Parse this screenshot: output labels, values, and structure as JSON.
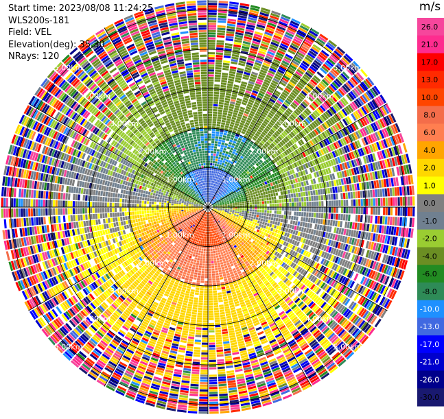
{
  "info": {
    "start_time": "Start time: 2023/08/08 11:24:25",
    "instrument": "WLS200s-181",
    "field": "Field: VEL",
    "elevation": "Elevation(deg): 35.30",
    "nrays": "NRays: 120"
  },
  "chart_data": {
    "type": "heatmap",
    "projection": "polar",
    "field": "VEL",
    "unit": "m/s",
    "nrays": 120,
    "elevation_deg": 35.3,
    "range_rings_km": [
      1.0,
      2.0,
      3.0,
      4.0,
      5.0
    ],
    "ring_labels": [
      "1.00km",
      "2.00km",
      "3.00km",
      "4.00km",
      "5.00km"
    ],
    "max_range_km": 5.25,
    "spokes_deg": [
      0,
      30,
      60,
      90,
      120,
      150,
      180,
      210,
      240,
      270,
      300,
      330
    ],
    "ring_label_angles_deg": [
      45,
      135,
      225,
      315
    ],
    "velocity_pattern": {
      "toward_direction_deg": 10,
      "away_direction_deg": 190,
      "amplitude_ms": [
        12,
        8,
        3,
        3,
        3
      ],
      "clean_range_km": 3.0
    }
  },
  "colorbar": {
    "title": "m/s",
    "ticks": [
      "26.0",
      "21.0",
      "17.0",
      "13.0",
      "10.0",
      "8.0",
      "6.0",
      "4.0",
      "2.0",
      "1.0",
      "0.0",
      "-1.0",
      "-2.0",
      "-4.0",
      "-6.0",
      "-8.0",
      "-10.0",
      "-13.0",
      "-17.0",
      "-21.0",
      "-26.0",
      "-30.0"
    ],
    "levels": [
      {
        "min": 26,
        "max": 30,
        "color": "#f6469c"
      },
      {
        "min": 21,
        "max": 26,
        "color": "#fe2c8f"
      },
      {
        "min": 17,
        "max": 21,
        "color": "#fe0000"
      },
      {
        "min": 13,
        "max": 17,
        "color": "#ff2a00"
      },
      {
        "min": 10,
        "max": 13,
        "color": "#ff4500"
      },
      {
        "min": 8,
        "max": 10,
        "color": "#f46d4a"
      },
      {
        "min": 6,
        "max": 8,
        "color": "#ff7f50"
      },
      {
        "min": 4,
        "max": 6,
        "color": "#ffa500"
      },
      {
        "min": 2,
        "max": 4,
        "color": "#ffd700"
      },
      {
        "min": 1,
        "max": 2,
        "color": "#ffff00"
      },
      {
        "min": 0,
        "max": 1,
        "color": "#808080"
      },
      {
        "min": -1,
        "max": 0,
        "color": "#708090"
      },
      {
        "min": -2,
        "max": -1,
        "color": "#9acd32"
      },
      {
        "min": -4,
        "max": -2,
        "color": "#6b8e23"
      },
      {
        "min": -6,
        "max": -4,
        "color": "#228b22"
      },
      {
        "min": -8,
        "max": -6,
        "color": "#2e8b57"
      },
      {
        "min": -10,
        "max": -8,
        "color": "#1e90ff"
      },
      {
        "min": -13,
        "max": -10,
        "color": "#4169e1"
      },
      {
        "min": -17,
        "max": -13,
        "color": "#0000ff"
      },
      {
        "min": -21,
        "max": -17,
        "color": "#0000cd"
      },
      {
        "min": -26,
        "max": -21,
        "color": "#00008b"
      },
      {
        "min": -30,
        "max": -26,
        "color": "#191970"
      }
    ]
  }
}
